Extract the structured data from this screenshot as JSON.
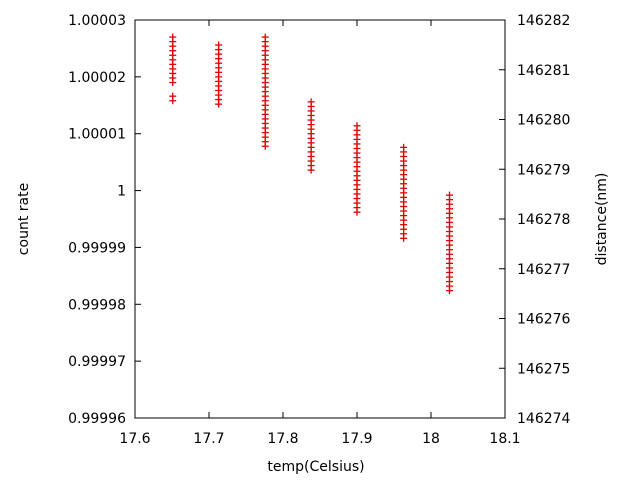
{
  "chart_data": {
    "type": "scatter",
    "title": "",
    "xlabel": "temp(Celsius)",
    "ylabel": "count rate",
    "y2label": "distance(nm)",
    "xlim": [
      17.6,
      18.1
    ],
    "ylim": [
      0.99996,
      1.00003
    ],
    "y2lim": [
      146274,
      146282
    ],
    "x_ticks": [
      "17.6",
      "17.7",
      "17.8",
      "17.9",
      "18",
      "18.1"
    ],
    "y_ticks": [
      "0.99996",
      "0.99997",
      "0.99998",
      "0.99999",
      "1",
      "1.00001",
      "1.00002",
      "1.00003"
    ],
    "y2_ticks": [
      "146274",
      "146275",
      "146276",
      "146277",
      "146278",
      "146279",
      "146280",
      "146281",
      "146282"
    ],
    "grid": false,
    "marker": "+",
    "marker_color": "#e00000",
    "series": [
      {
        "x": [
          17.651,
          17.651,
          17.651,
          17.651,
          17.651,
          17.651,
          17.651,
          17.651,
          17.651,
          17.651,
          17.651,
          17.651,
          17.651,
          17.713,
          17.713,
          17.713,
          17.713,
          17.713,
          17.713,
          17.713,
          17.713,
          17.713,
          17.713,
          17.713,
          17.713,
          17.713,
          17.713,
          17.776,
          17.776,
          17.776,
          17.776,
          17.776,
          17.776,
          17.776,
          17.776,
          17.776,
          17.776,
          17.776,
          17.776,
          17.776,
          17.776,
          17.776,
          17.776,
          17.776,
          17.776,
          17.776,
          17.776,
          17.776,
          17.776,
          17.776,
          17.776,
          17.776,
          17.838,
          17.838,
          17.838,
          17.838,
          17.838,
          17.838,
          17.838,
          17.838,
          17.838,
          17.838,
          17.838,
          17.838,
          17.838,
          17.838,
          17.838,
          17.838,
          17.9,
          17.9,
          17.9,
          17.9,
          17.9,
          17.9,
          17.9,
          17.9,
          17.9,
          17.9,
          17.9,
          17.9,
          17.9,
          17.9,
          17.9,
          17.9,
          17.9,
          17.9,
          17.9,
          17.9,
          17.963,
          17.963,
          17.963,
          17.963,
          17.963,
          17.963,
          17.963,
          17.963,
          17.963,
          17.963,
          17.963,
          17.963,
          17.963,
          17.963,
          17.963,
          17.963,
          17.963,
          17.963,
          17.963,
          17.963,
          17.963,
          18.025,
          18.025,
          18.025,
          18.025,
          18.025,
          18.025,
          18.025,
          18.025,
          18.025,
          18.025,
          18.025,
          18.025,
          18.025,
          18.025,
          18.025,
          18.025,
          18.025,
          18.025,
          18.025,
          18.025,
          18.025,
          18.025
        ],
        "y": [
          1.000027,
          1.0000262,
          1.0000254,
          1.0000246,
          1.0000238,
          1.000023,
          1.0000222,
          1.0000214,
          1.0000206,
          1.0000198,
          1.000019,
          1.0000166,
          1.0000158,
          1.0000256,
          1.0000248,
          1.000024,
          1.0000232,
          1.0000224,
          1.0000216,
          1.0000208,
          1.00002,
          1.0000192,
          1.0000184,
          1.0000176,
          1.0000168,
          1.000016,
          1.0000152,
          1.000027,
          1.0000262,
          1.0000254,
          1.0000246,
          1.0000238,
          1.000023,
          1.0000222,
          1.0000214,
          1.0000206,
          1.0000198,
          1.000019,
          1.0000182,
          1.0000174,
          1.0000166,
          1.0000158,
          1.000015,
          1.0000142,
          1.0000134,
          1.0000126,
          1.0000118,
          1.000011,
          1.0000102,
          1.0000094,
          1.0000086,
          1.0000078,
          1.0000156,
          1.0000148,
          1.000014,
          1.0000132,
          1.0000124,
          1.0000116,
          1.0000108,
          1.00001,
          1.0000092,
          1.0000084,
          1.0000076,
          1.0000068,
          1.000006,
          1.0000052,
          1.0000044,
          1.0000036,
          1.0000114,
          1.0000106,
          1.0000098,
          1.000009,
          1.0000082,
          1.0000074,
          1.0000066,
          1.0000058,
          1.000005,
          1.0000042,
          1.0000034,
          1.0000026,
          1.0000018,
          1.000001,
          1.0000002,
          0.9999994,
          0.9999986,
          0.9999978,
          0.999997,
          0.9999962,
          1.0000076,
          1.0000068,
          1.000006,
          1.0000052,
          1.0000044,
          1.0000036,
          1.0000028,
          1.000002,
          1.0000012,
          1.0000004,
          0.9999996,
          0.9999988,
          0.999998,
          0.9999972,
          0.9999964,
          0.9999956,
          0.9999948,
          0.999994,
          0.9999932,
          0.9999924,
          0.9999916,
          0.9999992,
          0.9999984,
          0.9999976,
          0.9999968,
          0.999996,
          0.9999952,
          0.9999944,
          0.9999936,
          0.9999928,
          0.999992,
          0.9999912,
          0.9999904,
          0.9999896,
          0.9999888,
          0.999988,
          0.9999872,
          0.9999864,
          0.9999856,
          0.9999848,
          0.999984,
          0.9999832,
          0.9999824
        ]
      }
    ]
  }
}
